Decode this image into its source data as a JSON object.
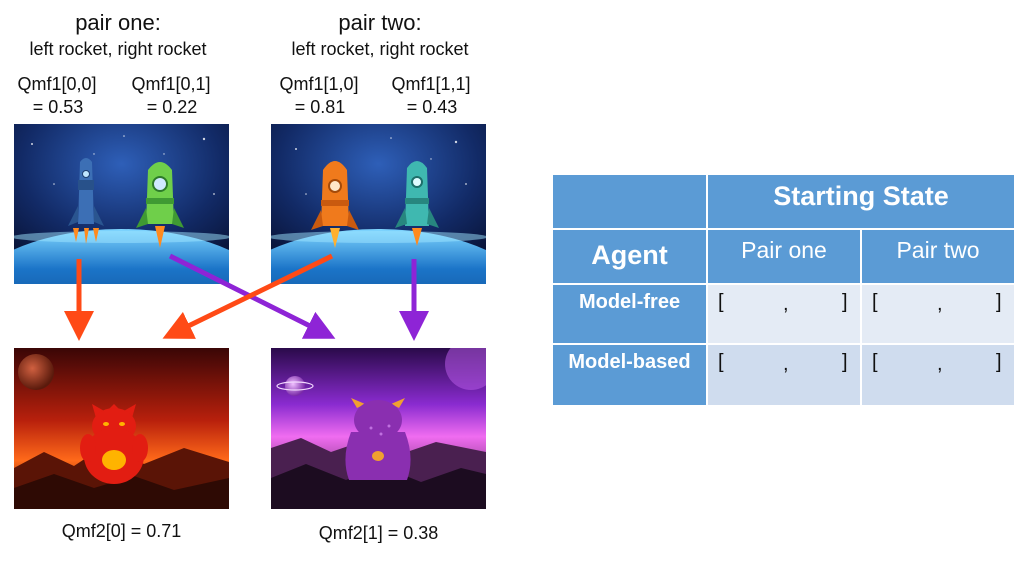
{
  "pairs": [
    {
      "title": "pair one:",
      "subtitle": "left rocket, right rocket",
      "left_label": "Qmf1[0,0]",
      "left_value": "= 0.53",
      "right_label": "Qmf1[0,1]",
      "right_value": "= 0.22"
    },
    {
      "title": "pair two:",
      "subtitle": "left rocket, right rocket",
      "left_label": "Qmf1[1,0]",
      "left_value": "= 0.81",
      "right_label": "Qmf1[1,1]",
      "right_value": "= 0.43"
    }
  ],
  "planets": [
    {
      "label": "Qmf2[0] = 0.71"
    },
    {
      "label": "Qmf2[1] = 0.38"
    }
  ],
  "colors": {
    "arrow_red": "#ff4a16",
    "arrow_purple": "#8e24d6",
    "table_header": "#5b9bd5",
    "table_row_1": "#e4ebf5",
    "table_row_2": "#cfdcee"
  },
  "table": {
    "header_top": "Starting State",
    "col_agent": "Agent",
    "col_pair_one": "Pair one",
    "col_pair_two": "Pair two",
    "rows": [
      {
        "label": "Model-free",
        "open": "[",
        "sep": ",",
        "close": "]"
      },
      {
        "label": "Model-based",
        "open": "[",
        "sep": ",",
        "close": "]"
      }
    ]
  }
}
